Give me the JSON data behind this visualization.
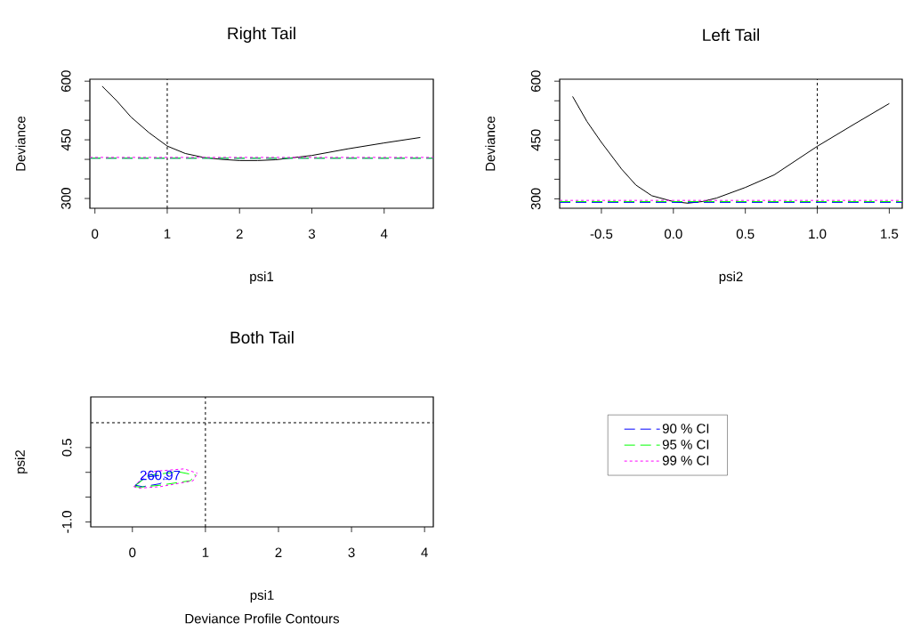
{
  "chart_data": [
    {
      "type": "line",
      "title": "Right Tail",
      "xlabel": "psi1",
      "ylabel": "Deviance",
      "color": "#000000",
      "x": [
        0.1,
        0.3,
        0.5,
        0.75,
        1.0,
        1.25,
        1.5,
        1.75,
        2.0,
        2.25,
        2.5,
        3.0,
        3.5,
        4.0,
        4.5
      ],
      "values": [
        587,
        550,
        508,
        468,
        434,
        415,
        405,
        400,
        397,
        397,
        399,
        410,
        427,
        442,
        456
      ],
      "xlim": [
        -0.07,
        4.68
      ],
      "ylim": [
        275,
        605
      ],
      "xticks": [
        0,
        1,
        2,
        3,
        4
      ],
      "yticks": [
        300,
        {
          "value": 350,
          "label": null
        },
        {
          "value": 400,
          "label": null
        },
        450,
        {
          "value": 500,
          "label": null
        },
        {
          "value": 550,
          "label": null
        },
        600
      ],
      "ref_lines": [
        {
          "axis": "x",
          "value": 1,
          "color": "#000000",
          "line_style": "dotted"
        },
        {
          "axis": "y",
          "value": 403,
          "color": "#0000ff",
          "line_style": "dashed"
        },
        {
          "axis": "y",
          "value": 403,
          "color": "#00ff00",
          "line_style": "dashed"
        },
        {
          "axis": "y",
          "value": 405,
          "color": "#ff00ff",
          "line_style": "dotted"
        }
      ]
    },
    {
      "type": "line",
      "title": "Left Tail",
      "xlabel": "psi2",
      "ylabel": "Deviance",
      "color": "#000000",
      "x": [
        -0.7,
        -0.6,
        -0.5,
        -0.36,
        -0.26,
        -0.15,
        0.0,
        0.1,
        0.2,
        0.3,
        0.5,
        0.7,
        1.0,
        1.25,
        1.5
      ],
      "values": [
        561,
        497,
        444,
        376,
        335,
        308,
        293,
        289,
        293,
        302,
        329,
        361,
        434,
        489,
        543
      ],
      "xlim": [
        -0.79,
        1.59
      ],
      "ylim": [
        276,
        605
      ],
      "xticks": [
        -0.5,
        {
          "value": 0,
          "label": "0.0"
        },
        0.5,
        {
          "value": 1,
          "label": "1.0"
        },
        1.5
      ],
      "yticks": [
        300,
        {
          "value": 350,
          "label": null
        },
        {
          "value": 400,
          "label": null
        },
        450,
        {
          "value": 500,
          "label": null
        },
        {
          "value": 550,
          "label": null
        },
        600
      ],
      "ref_lines": [
        {
          "axis": "x",
          "value": 1,
          "color": "#000000",
          "line_style": "dotted"
        },
        {
          "axis": "y",
          "value": 291,
          "color": "#0000ff",
          "line_style": "dashed"
        },
        {
          "axis": "y",
          "value": 293,
          "color": "#00ff00",
          "line_style": "dashed"
        },
        {
          "axis": "y",
          "value": 296,
          "color": "#ff00ff",
          "line_style": "dotted"
        }
      ]
    },
    {
      "type": "line",
      "title": "Both Tail",
      "xlabel": "psi1",
      "ylabel": "psi2",
      "legend": "right",
      "series": [
        {
          "name": "90 % CI",
          "color": "#0000ff",
          "line_style": "dashed",
          "x": [
            0.04,
            0.18,
            0.38,
            0.48
          ],
          "values": [
            -0.26,
            -0.1,
            -0.06,
            -0.12
          ]
        },
        {
          "name": "95 % CI",
          "color": "#00ff00",
          "line_style": "dashed",
          "x": [
            0.03,
            0.22,
            0.63,
            0.87
          ],
          "values": [
            -0.28,
            -0.06,
            0.01,
            -0.06
          ]
        },
        {
          "name": "99 % CI",
          "color": "#ff00ff",
          "line_style": "dotted",
          "x": [
            0.02,
            0.22,
            0.71,
            0.89
          ],
          "values": [
            -0.29,
            0.01,
            0.07,
            -0.02
          ]
        },
        {
          "color": "#0000ff",
          "line_style": "dashed",
          "x": [
            0.04,
            0.14,
            0.38,
            0.48
          ],
          "values": [
            -0.26,
            -0.29,
            -0.23,
            -0.12
          ]
        },
        {
          "color": "#00ff00",
          "line_style": "dashed",
          "x": [
            0.03,
            0.1,
            0.38,
            0.79,
            0.87
          ],
          "values": [
            -0.28,
            -0.3,
            -0.26,
            -0.17,
            -0.06
          ]
        },
        {
          "color": "#ff00ff",
          "line_style": "dotted",
          "x": [
            0.02,
            0.08,
            0.38,
            0.83,
            0.89
          ],
          "values": [
            -0.29,
            -0.32,
            -0.29,
            -0.17,
            -0.02
          ]
        }
      ],
      "xlim": [
        -0.57,
        4.12
      ],
      "ylim": [
        -1.1,
        1.52
      ],
      "xticks": [
        0,
        1,
        2,
        3,
        4
      ],
      "yticks": [
        {
          "value": -1,
          "label": "-1.0"
        },
        {
          "value": -0.5,
          "label": null
        },
        {
          "value": 0,
          "label": null
        },
        0.5
      ],
      "ref_lines": [
        {
          "axis": "x",
          "value": 1,
          "color": "#000000",
          "line_style": "dotted"
        },
        {
          "axis": "y",
          "value": 1,
          "color": "#000000",
          "line_style": "dotted"
        }
      ],
      "annotations": [
        {
          "text": "260.97",
          "x": 0.38,
          "y": -0.06
        },
        "Deviance Profile Contours"
      ]
    }
  ]
}
